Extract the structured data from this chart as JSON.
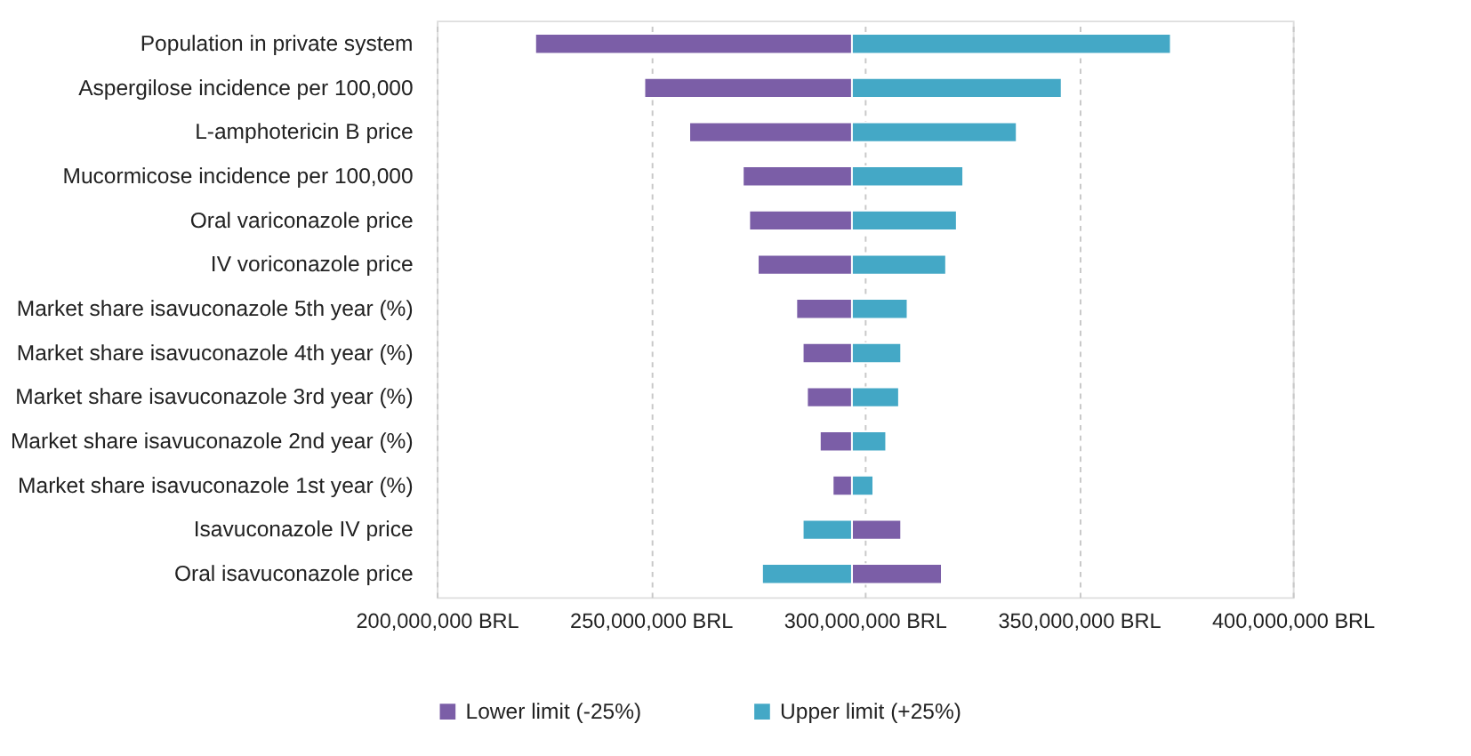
{
  "chart_data": {
    "type": "bar",
    "orientation": "horizontal",
    "categories": [
      "Population in private system",
      "Aspergilose incidence per 100,000",
      "L-amphotericin B price",
      "Mucormicose incidence per 100,000",
      "Oral variconazole price",
      "IV voriconazole price",
      "Market share isavuconazole 5th year (%)",
      "Market share isavuconazole 4th year (%)",
      "Market share isavuconazole 3rd year (%)",
      "Market share isavuconazole 2nd year (%)",
      "Market share isavuconazole 1st year (%)",
      "Isavuconazole IV price",
      "Oral isavuconazole price"
    ],
    "series": [
      {
        "name": "Lower limit (-25%)",
        "color": "#7b5ea7",
        "base": [
          297000000,
          297000000,
          297000000,
          297000000,
          297000000,
          297000000,
          297000000,
          297000000,
          297000000,
          297000000,
          297000000,
          297000000,
          297000000
        ],
        "values": [
          -74000000,
          -48500000,
          -38000000,
          -25500000,
          -24000000,
          -22000000,
          -13000000,
          -11500000,
          -10500000,
          -7500000,
          -4500000,
          11500000,
          21000000
        ]
      },
      {
        "name": "Upper limit (+25%)",
        "color": "#44a8c6",
        "base": [
          297000000,
          297000000,
          297000000,
          297000000,
          297000000,
          297000000,
          297000000,
          297000000,
          297000000,
          297000000,
          297000000,
          297000000,
          297000000
        ],
        "values": [
          74500000,
          49000000,
          38500000,
          26000000,
          24500000,
          22000000,
          13000000,
          11500000,
          11000000,
          8000000,
          5000000,
          -11500000,
          -21000000
        ]
      }
    ],
    "xlim": [
      200000000,
      400000000
    ],
    "xticks": [
      {
        "value": 200000000,
        "label": "200,000,000 BRL"
      },
      {
        "value": 250000000,
        "label": "250,000,000 BRL"
      },
      {
        "value": 300000000,
        "label": "300,000,000 BRL"
      },
      {
        "value": 350000000,
        "label": "350,000,000 BRL"
      },
      {
        "value": 400000000,
        "label": "400,000,000 BRL"
      }
    ],
    "grid": "x",
    "legend": "bottom"
  }
}
